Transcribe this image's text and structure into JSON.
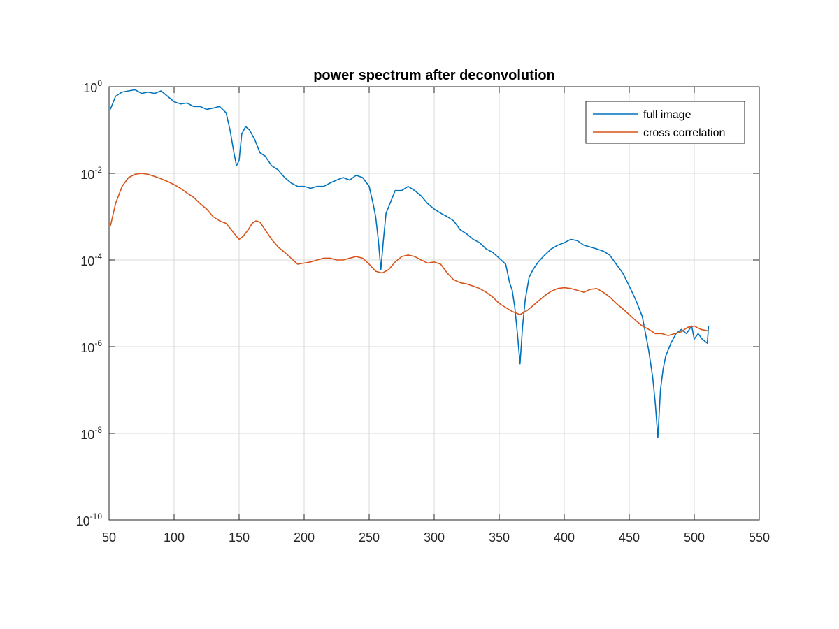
{
  "chart_data": {
    "type": "line",
    "title": "power spectrum after deconvolution",
    "xlabel": "",
    "ylabel": "",
    "xlim": [
      50,
      550
    ],
    "ylim": [
      1e-10,
      1
    ],
    "yscale": "log",
    "grid": true,
    "legend_position": "top-right",
    "x_ticks": [
      "50",
      "100",
      "150",
      "200",
      "250",
      "300",
      "350",
      "400",
      "450",
      "500",
      "550"
    ],
    "y_ticks": [
      {
        "base": "10",
        "exp": "0"
      },
      {
        "base": "10",
        "exp": "-2"
      },
      {
        "base": "10",
        "exp": "-4"
      },
      {
        "base": "10",
        "exp": "-6"
      },
      {
        "base": "10",
        "exp": "-8"
      },
      {
        "base": "10",
        "exp": "-10"
      }
    ],
    "series": [
      {
        "name": "full image",
        "color": "#0072BD",
        "points": [
          [
            51,
            0.3
          ],
          [
            55,
            0.6
          ],
          [
            60,
            0.75
          ],
          [
            65,
            0.8
          ],
          [
            70,
            0.85
          ],
          [
            75,
            0.7
          ],
          [
            80,
            0.75
          ],
          [
            85,
            0.7
          ],
          [
            90,
            0.8
          ],
          [
            95,
            0.6
          ],
          [
            100,
            0.45
          ],
          [
            105,
            0.4
          ],
          [
            110,
            0.42
          ],
          [
            115,
            0.35
          ],
          [
            120,
            0.35
          ],
          [
            125,
            0.3
          ],
          [
            130,
            0.32
          ],
          [
            135,
            0.35
          ],
          [
            140,
            0.25
          ],
          [
            143,
            0.1
          ],
          [
            146,
            0.03
          ],
          [
            148,
            0.015
          ],
          [
            150,
            0.02
          ],
          [
            152,
            0.08
          ],
          [
            155,
            0.12
          ],
          [
            158,
            0.1
          ],
          [
            162,
            0.06
          ],
          [
            166,
            0.03
          ],
          [
            170,
            0.025
          ],
          [
            175,
            0.015
          ],
          [
            180,
            0.012
          ],
          [
            185,
            0.008
          ],
          [
            190,
            0.006
          ],
          [
            195,
            0.005
          ],
          [
            200,
            0.005
          ],
          [
            205,
            0.0045
          ],
          [
            210,
            0.005
          ],
          [
            215,
            0.005
          ],
          [
            220,
            0.006
          ],
          [
            225,
            0.007
          ],
          [
            230,
            0.008
          ],
          [
            235,
            0.007
          ],
          [
            240,
            0.009
          ],
          [
            245,
            0.008
          ],
          [
            250,
            0.005
          ],
          [
            253,
            0.002
          ],
          [
            255,
            0.001
          ],
          [
            257,
            0.0003
          ],
          [
            259,
            6e-05
          ],
          [
            261,
            0.0003
          ],
          [
            263,
            0.0012
          ],
          [
            266,
            0.002
          ],
          [
            270,
            0.004
          ],
          [
            275,
            0.004
          ],
          [
            280,
            0.005
          ],
          [
            285,
            0.004
          ],
          [
            290,
            0.003
          ],
          [
            295,
            0.002
          ],
          [
            300,
            0.0015
          ],
          [
            305,
            0.0012
          ],
          [
            310,
            0.001
          ],
          [
            315,
            0.0008
          ],
          [
            320,
            0.0005
          ],
          [
            325,
            0.0004
          ],
          [
            330,
            0.0003
          ],
          [
            335,
            0.00025
          ],
          [
            340,
            0.00018
          ],
          [
            345,
            0.00015
          ],
          [
            350,
            0.00011
          ],
          [
            355,
            8e-05
          ],
          [
            358,
            3e-05
          ],
          [
            360,
            2e-05
          ],
          [
            362,
            8e-06
          ],
          [
            364,
            2e-06
          ],
          [
            366,
            4e-07
          ],
          [
            368,
            3e-06
          ],
          [
            370,
            1.2e-05
          ],
          [
            373,
            4e-05
          ],
          [
            376,
            6e-05
          ],
          [
            380,
            9e-05
          ],
          [
            385,
            0.00013
          ],
          [
            390,
            0.00018
          ],
          [
            395,
            0.00022
          ],
          [
            400,
            0.00025
          ],
          [
            405,
            0.0003
          ],
          [
            410,
            0.00028
          ],
          [
            415,
            0.00022
          ],
          [
            420,
            0.0002
          ],
          [
            425,
            0.00018
          ],
          [
            430,
            0.00016
          ],
          [
            435,
            0.00013
          ],
          [
            440,
            8e-05
          ],
          [
            445,
            5e-05
          ],
          [
            450,
            2.5e-05
          ],
          [
            455,
            1.2e-05
          ],
          [
            460,
            5e-06
          ],
          [
            465,
            8e-07
          ],
          [
            468,
            2e-07
          ],
          [
            470,
            5e-08
          ],
          [
            472,
            8e-09
          ],
          [
            474,
            1e-07
          ],
          [
            476,
            3e-07
          ],
          [
            478,
            6e-07
          ],
          [
            482,
            1.2e-06
          ],
          [
            486,
            2e-06
          ],
          [
            490,
            2.5e-06
          ],
          [
            494,
            2e-06
          ],
          [
            498,
            3e-06
          ],
          [
            500,
            1.5e-06
          ],
          [
            503,
            2e-06
          ],
          [
            506,
            1.5e-06
          ],
          [
            510,
            1.2e-06
          ],
          [
            511,
            3e-06
          ]
        ]
      },
      {
        "name": "cross correlation",
        "color": "#D95319",
        "points": [
          [
            51,
            0.0006
          ],
          [
            55,
            0.002
          ],
          [
            60,
            0.005
          ],
          [
            65,
            0.008
          ],
          [
            70,
            0.0095
          ],
          [
            75,
            0.01
          ],
          [
            80,
            0.0095
          ],
          [
            85,
            0.0085
          ],
          [
            90,
            0.0075
          ],
          [
            95,
            0.0065
          ],
          [
            100,
            0.0055
          ],
          [
            105,
            0.0045
          ],
          [
            110,
            0.0035
          ],
          [
            115,
            0.0028
          ],
          [
            120,
            0.002
          ],
          [
            125,
            0.0015
          ],
          [
            130,
            0.001
          ],
          [
            135,
            0.0008
          ],
          [
            140,
            0.0007
          ],
          [
            144,
            0.0005
          ],
          [
            148,
            0.00035
          ],
          [
            150,
            0.0003
          ],
          [
            153,
            0.00035
          ],
          [
            157,
            0.0005
          ],
          [
            160,
            0.0007
          ],
          [
            163,
            0.0008
          ],
          [
            166,
            0.00075
          ],
          [
            170,
            0.0005
          ],
          [
            175,
            0.0003
          ],
          [
            180,
            0.0002
          ],
          [
            185,
            0.00015
          ],
          [
            190,
            0.00011
          ],
          [
            195,
            8e-05
          ],
          [
            200,
            8.5e-05
          ],
          [
            205,
            9e-05
          ],
          [
            210,
            0.0001
          ],
          [
            215,
            0.00011
          ],
          [
            220,
            0.00011
          ],
          [
            225,
            0.0001
          ],
          [
            230,
            0.0001
          ],
          [
            235,
            0.00011
          ],
          [
            240,
            0.00012
          ],
          [
            245,
            0.00011
          ],
          [
            250,
            8e-05
          ],
          [
            255,
            5.5e-05
          ],
          [
            260,
            5e-05
          ],
          [
            265,
            6e-05
          ],
          [
            270,
            9e-05
          ],
          [
            275,
            0.00012
          ],
          [
            280,
            0.00013
          ],
          [
            285,
            0.00012
          ],
          [
            290,
            0.0001
          ],
          [
            295,
            8.5e-05
          ],
          [
            300,
            9e-05
          ],
          [
            305,
            8e-05
          ],
          [
            310,
            5e-05
          ],
          [
            315,
            3.5e-05
          ],
          [
            320,
            3e-05
          ],
          [
            325,
            2.8e-05
          ],
          [
            330,
            2.5e-05
          ],
          [
            335,
            2.2e-05
          ],
          [
            340,
            1.8e-05
          ],
          [
            345,
            1.4e-05
          ],
          [
            350,
            1e-05
          ],
          [
            355,
            8e-06
          ],
          [
            360,
            6.5e-06
          ],
          [
            366,
            5.5e-06
          ],
          [
            372,
            7e-06
          ],
          [
            378,
            1e-05
          ],
          [
            385,
            1.5e-05
          ],
          [
            390,
            1.9e-05
          ],
          [
            395,
            2.2e-05
          ],
          [
            400,
            2.3e-05
          ],
          [
            405,
            2.2e-05
          ],
          [
            410,
            2e-05
          ],
          [
            415,
            1.8e-05
          ],
          [
            420,
            2.1e-05
          ],
          [
            425,
            2.2e-05
          ],
          [
            430,
            1.8e-05
          ],
          [
            435,
            1.4e-05
          ],
          [
            440,
            1e-05
          ],
          [
            445,
            7.5e-06
          ],
          [
            450,
            5.5e-06
          ],
          [
            455,
            4e-06
          ],
          [
            460,
            3e-06
          ],
          [
            465,
            2.5e-06
          ],
          [
            470,
            2e-06
          ],
          [
            475,
            2e-06
          ],
          [
            480,
            1.8e-06
          ],
          [
            485,
            2e-06
          ],
          [
            490,
            2.2e-06
          ],
          [
            495,
            2.8e-06
          ],
          [
            500,
            3e-06
          ],
          [
            505,
            2.5e-06
          ],
          [
            511,
            2.3e-06
          ]
        ]
      }
    ]
  }
}
